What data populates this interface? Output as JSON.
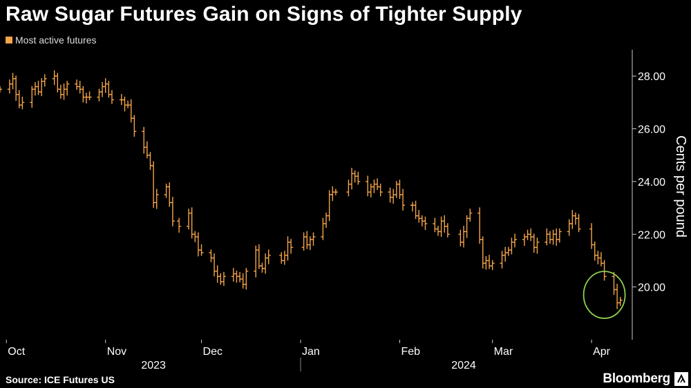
{
  "title": "Raw Sugar Futures Gain on Signs of Tighter Supply",
  "legend_label": "Most active futures",
  "source": "Source: ICE Futures US",
  "brand": "Bloomberg",
  "colors": {
    "series": "#f5a54a",
    "axis": "#cccccc",
    "highlight": "#8fd14f",
    "background": "#000000"
  },
  "chart_data": {
    "type": "line",
    "subtype": "ohlc",
    "ylabel": "Cents per pound",
    "ylim": [
      18.0,
      29.0
    ],
    "y_ticks": [
      "20.00",
      "22.00",
      "24.00",
      "26.00",
      "28.00"
    ],
    "y_tick_values": [
      20,
      22,
      24,
      26,
      28
    ],
    "x_range": [
      "2023-09-29",
      "2024-04-12"
    ],
    "x_months": [
      {
        "label": "Oct",
        "date": "2023-10-01"
      },
      {
        "label": "Nov",
        "date": "2023-11-01"
      },
      {
        "label": "Dec",
        "date": "2023-12-01"
      },
      {
        "label": "Jan",
        "date": "2024-01-01"
      },
      {
        "label": "Feb",
        "date": "2024-02-01"
      },
      {
        "label": "Mar",
        "date": "2024-03-01"
      },
      {
        "label": "Apr",
        "date": "2024-04-01"
      }
    ],
    "year_labels": [
      {
        "label": "2023",
        "from": "2023-10-01",
        "to": "2024-01-01"
      },
      {
        "label": "2024",
        "from": "2024-01-01",
        "to": "2024-04-12"
      }
    ],
    "annotation": {
      "shape": "circle",
      "date": "2024-04-05",
      "value": 19.7
    },
    "series": [
      {
        "name": "Most active futures",
        "dates": [
          "2023-09-29",
          "2023-10-02",
          "2023-10-03",
          "2023-10-04",
          "2023-10-05",
          "2023-10-06",
          "2023-10-09",
          "2023-10-10",
          "2023-10-11",
          "2023-10-12",
          "2023-10-13",
          "2023-10-16",
          "2023-10-17",
          "2023-10-18",
          "2023-10-19",
          "2023-10-20",
          "2023-10-23",
          "2023-10-24",
          "2023-10-25",
          "2023-10-26",
          "2023-10-27",
          "2023-10-30",
          "2023-10-31",
          "2023-11-01",
          "2023-11-02",
          "2023-11-03",
          "2023-11-06",
          "2023-11-07",
          "2023-11-08",
          "2023-11-09",
          "2023-11-10",
          "2023-11-13",
          "2023-11-14",
          "2023-11-15",
          "2023-11-16",
          "2023-11-17",
          "2023-11-20",
          "2023-11-21",
          "2023-11-22",
          "2023-11-24",
          "2023-11-27",
          "2023-11-28",
          "2023-11-29",
          "2023-11-30",
          "2023-12-01",
          "2023-12-04",
          "2023-12-05",
          "2023-12-06",
          "2023-12-07",
          "2023-12-08",
          "2023-12-11",
          "2023-12-12",
          "2023-12-13",
          "2023-12-14",
          "2023-12-15",
          "2023-12-18",
          "2023-12-19",
          "2023-12-20",
          "2023-12-21",
          "2023-12-22",
          "2023-12-26",
          "2023-12-27",
          "2023-12-28",
          "2023-12-29",
          "2024-01-02",
          "2024-01-03",
          "2024-01-04",
          "2024-01-05",
          "2024-01-08",
          "2024-01-09",
          "2024-01-10",
          "2024-01-11",
          "2024-01-12",
          "2024-01-16",
          "2024-01-17",
          "2024-01-18",
          "2024-01-19",
          "2024-01-22",
          "2024-01-23",
          "2024-01-24",
          "2024-01-25",
          "2024-01-26",
          "2024-01-29",
          "2024-01-30",
          "2024-01-31",
          "2024-02-01",
          "2024-02-02",
          "2024-02-05",
          "2024-02-06",
          "2024-02-07",
          "2024-02-08",
          "2024-02-09",
          "2024-02-12",
          "2024-02-13",
          "2024-02-14",
          "2024-02-15",
          "2024-02-16",
          "2024-02-20",
          "2024-02-21",
          "2024-02-22",
          "2024-02-23",
          "2024-02-26",
          "2024-02-27",
          "2024-02-28",
          "2024-02-29",
          "2024-03-01",
          "2024-03-04",
          "2024-03-05",
          "2024-03-06",
          "2024-03-07",
          "2024-03-08",
          "2024-03-11",
          "2024-03-12",
          "2024-03-13",
          "2024-03-14",
          "2024-03-15",
          "2024-03-18",
          "2024-03-19",
          "2024-03-20",
          "2024-03-21",
          "2024-03-22",
          "2024-03-25",
          "2024-03-26",
          "2024-03-27",
          "2024-03-28",
          "2024-04-01",
          "2024-04-02",
          "2024-04-03",
          "2024-04-04",
          "2024-04-05",
          "2024-04-08",
          "2024-04-09",
          "2024-04-10"
        ],
        "close": [
          27.5,
          27.7,
          27.9,
          27.3,
          26.9,
          27.0,
          27.5,
          27.6,
          27.4,
          27.8,
          27.9,
          28.0,
          27.5,
          27.3,
          27.5,
          27.7,
          27.6,
          27.5,
          27.2,
          27.2,
          27.2,
          27.4,
          27.6,
          27.7,
          27.3,
          27.1,
          27.1,
          26.9,
          26.9,
          26.4,
          25.9,
          25.3,
          25.0,
          24.6,
          23.2,
          23.5,
          23.8,
          23.2,
          22.5,
          22.3,
          22.8,
          22.0,
          21.9,
          21.4,
          21.3,
          21.1,
          20.6,
          20.4,
          20.2,
          20.4,
          20.5,
          20.4,
          20.3,
          20.1,
          20.6,
          21.4,
          20.8,
          20.7,
          21.1,
          21.2,
          21.0,
          21.2,
          21.7,
          21.5,
          21.9,
          21.6,
          21.8,
          21.9,
          22.4,
          22.7,
          23.5,
          23.6,
          23.6,
          23.9,
          24.3,
          24.2,
          24.0,
          23.6,
          23.8,
          23.9,
          23.8,
          23.6,
          23.4,
          23.5,
          23.9,
          23.5,
          23.1,
          23.1,
          22.7,
          22.6,
          22.5,
          22.4,
          22.2,
          22.1,
          22.5,
          22.3,
          22.0,
          21.7,
          22.1,
          22.6,
          22.8,
          21.8,
          20.9,
          21.0,
          20.8,
          20.9,
          21.2,
          21.3,
          21.4,
          21.7,
          21.8,
          21.9,
          22.0,
          21.9,
          21.5,
          21.7,
          22.0,
          21.8,
          22.0,
          21.8,
          22.1,
          22.4,
          22.7,
          22.6,
          22.2,
          21.6,
          21.2,
          21.1,
          20.9,
          20.4,
          19.9,
          19.4,
          19.5
        ]
      }
    ]
  }
}
